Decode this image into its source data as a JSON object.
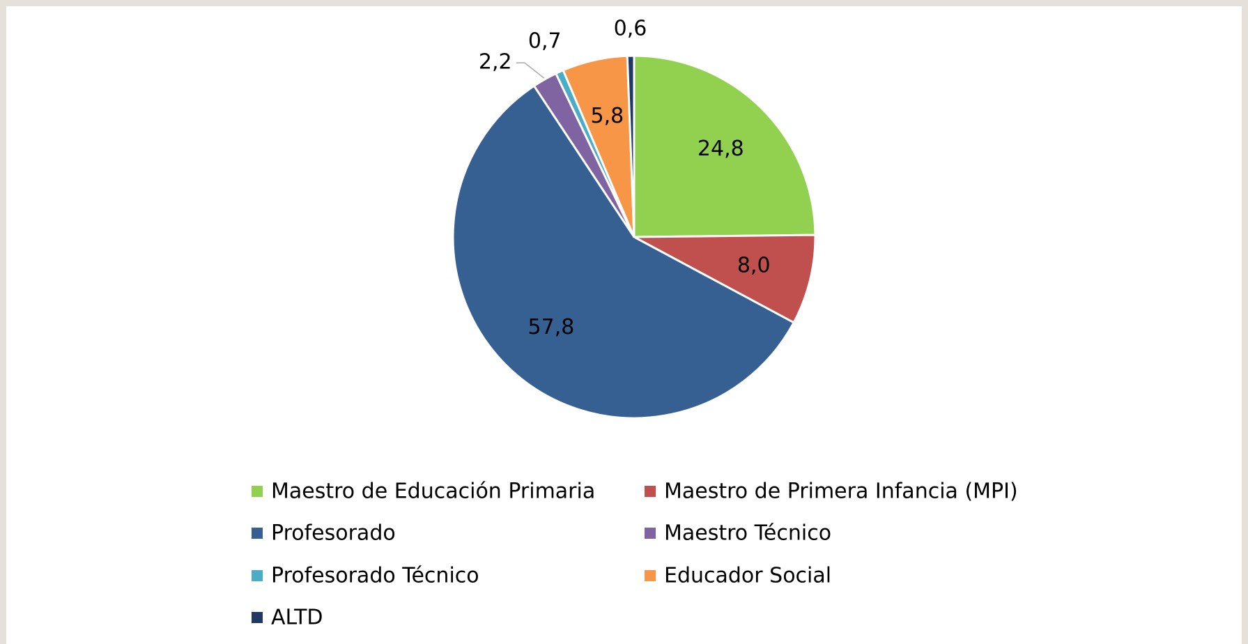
{
  "chart_data": {
    "type": "pie",
    "categories": [
      "Maestro de Educación Primaria",
      "Maestro de Primera Infancia (MPI)",
      "Profesorado",
      "Maestro Técnico",
      "Profesorado Técnico",
      "Educador Social",
      "ALTD"
    ],
    "values": [
      24.8,
      8.0,
      57.8,
      2.2,
      0.7,
      5.8,
      0.6
    ],
    "value_labels": [
      "24,8",
      "8,0",
      "57,8",
      "2,2",
      "0,7",
      "5,8",
      "0,6"
    ],
    "colors": [
      "#92d050",
      "#c0504d",
      "#376092",
      "#8064a2",
      "#4bacc6",
      "#f79646",
      "#1f3864"
    ],
    "legend": "bottom"
  }
}
